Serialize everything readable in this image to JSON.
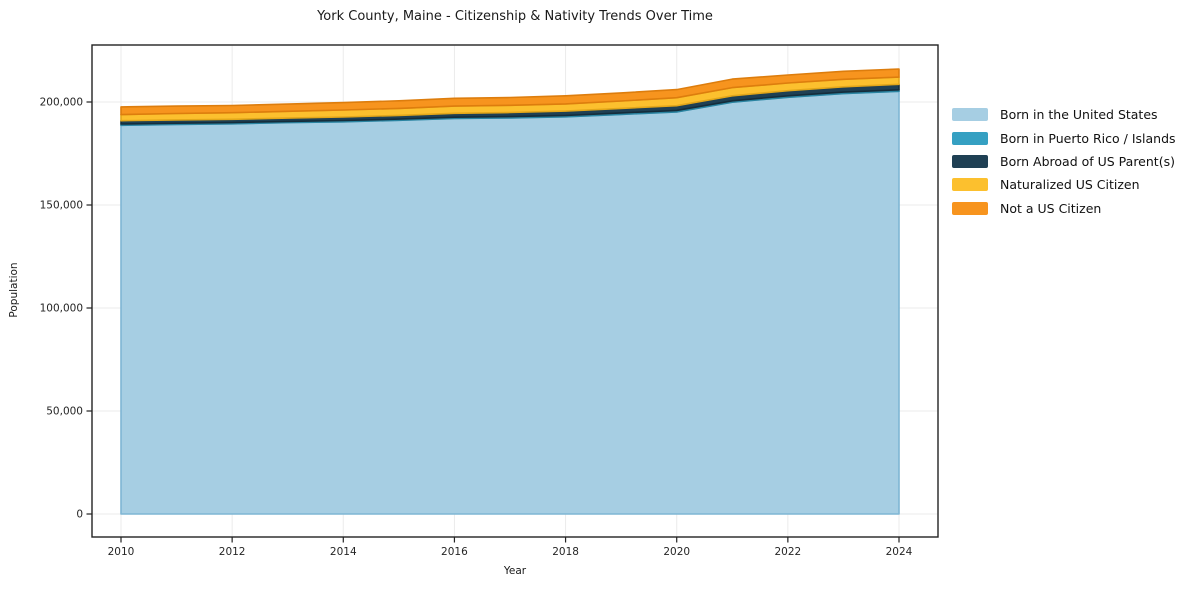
{
  "chart": {
    "title": "York County, Maine - Citizenship & Nativity Trends Over Time",
    "xlabel": "Year",
    "ylabel": "Population"
  },
  "chart_data": {
    "type": "area",
    "stacked": true,
    "title": "York County, Maine - Citizenship & Nativity Trends Over Time",
    "xlabel": "Year",
    "ylabel": "Population",
    "grid": true,
    "legend_position": "right",
    "xlim": [
      2009.48,
      2024.7
    ],
    "ylim": [
      -11000,
      227700
    ],
    "x": [
      2010,
      2011,
      2012,
      2013,
      2014,
      2015,
      2016,
      2017,
      2018,
      2019,
      2020,
      2021,
      2022,
      2023,
      2024
    ],
    "x_ticks": [
      2010,
      2012,
      2014,
      2016,
      2018,
      2020,
      2022,
      2024
    ],
    "y_ticks": [
      0,
      50000,
      100000,
      150000,
      200000
    ],
    "y_tick_labels": [
      "0",
      "50,000",
      "100,000",
      "150,000",
      "200,000"
    ],
    "series": [
      {
        "name": "Born in the United States",
        "color": "#a6cee3",
        "edge_color": "#7fb6d4",
        "values": [
          188700,
          189100,
          189400,
          190000,
          190400,
          191100,
          192000,
          192300,
          192800,
          194000,
          195200,
          199900,
          202300,
          204100,
          205200
        ]
      },
      {
        "name": "Born in Puerto Rico / Islands",
        "color": "#35a0c2",
        "edge_color": "#2a84a1",
        "values": [
          600,
          600,
          600,
          600,
          600,
          600,
          600,
          600,
          700,
          700,
          700,
          700,
          700,
          700,
          700
        ]
      },
      {
        "name": "Born Abroad of US Parent(s)",
        "color": "#1f4054",
        "edge_color": "#152d3b",
        "values": [
          1600,
          1600,
          1600,
          1600,
          1700,
          1800,
          1900,
          2000,
          2100,
          2200,
          2300,
          2400,
          2500,
          2600,
          2700
        ]
      },
      {
        "name": "Naturalized US Citizen",
        "color": "#fcc02e",
        "edge_color": "#e3a71a",
        "values": [
          3000,
          3100,
          3200,
          3300,
          3400,
          3400,
          3500,
          3500,
          3500,
          3600,
          3900,
          4000,
          3700,
          3600,
          3500
        ]
      },
      {
        "name": "Not a US Citizen",
        "color": "#f7941e",
        "edge_color": "#dd7d0d",
        "values": [
          3700,
          3600,
          3500,
          3500,
          3600,
          3700,
          3800,
          3800,
          3900,
          3900,
          3900,
          4100,
          3900,
          3900,
          3900
        ]
      }
    ],
    "plot_style": {
      "background": "#ffffff",
      "grid_color": "#ebebeb",
      "spine_color": "#222222",
      "tick_color": "#222222",
      "tick_label_color": "#262626"
    }
  }
}
